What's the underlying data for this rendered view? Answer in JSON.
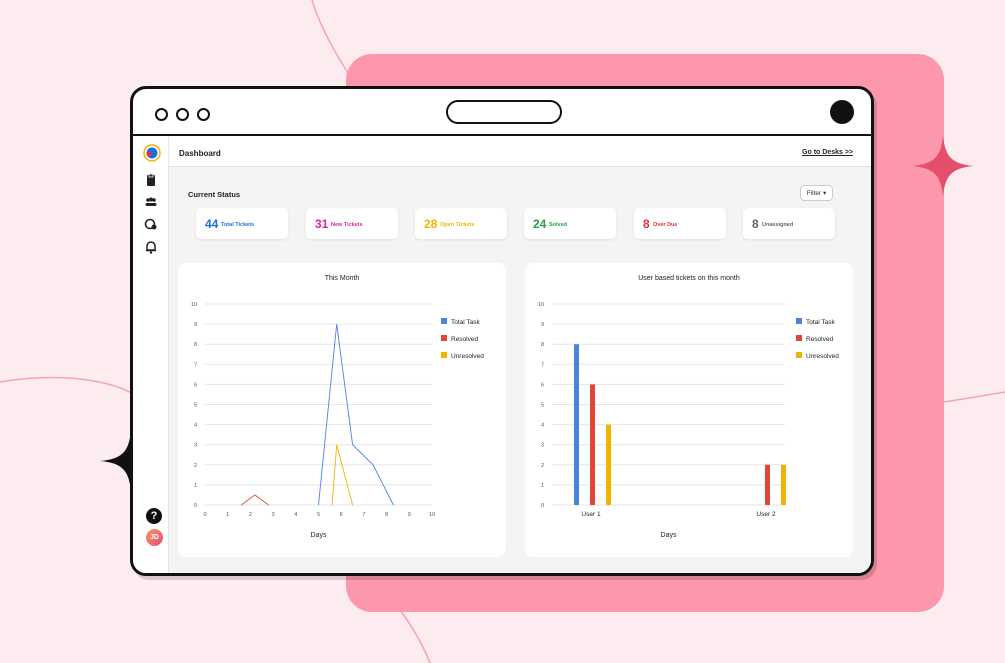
{
  "app": {
    "page_title": "Dashboard",
    "go_to_desks": "Go to Desks >>",
    "current_status_label": "Current Status",
    "filter_label": "Filter",
    "avatar_initials": "JD",
    "help_label": "?"
  },
  "stats": [
    {
      "value": "44",
      "label": "Total Tickets",
      "color": "#1a6fe0"
    },
    {
      "value": "31",
      "label": "New Tickets",
      "color": "#e0259b"
    },
    {
      "value": "28",
      "label": "Open Tickets",
      "color": "#f2b300"
    },
    {
      "value": "24",
      "label": "Solved",
      "color": "#24a046"
    },
    {
      "value": "8",
      "label": "Over Due",
      "color": "#e0303a"
    },
    {
      "value": "8",
      "label": "Unassigned",
      "color": "#666666"
    }
  ],
  "chart_data": [
    {
      "type": "line",
      "title": "This Month",
      "xlabel": "Days",
      "ylabel": "",
      "xlim": [
        0,
        10
      ],
      "ylim": [
        0,
        10
      ],
      "x_ticks": [
        "0",
        "1",
        "2",
        "3",
        "4",
        "5",
        "6",
        "7",
        "8",
        "9",
        "10"
      ],
      "y_ticks": [
        "0",
        "1",
        "2",
        "3",
        "4",
        "5",
        "6",
        "7",
        "8",
        "9",
        "10"
      ],
      "legend_position": "right",
      "series": [
        {
          "name": "Total Task",
          "color": "#4a84e0",
          "points": [
            [
              5,
              0
            ],
            [
              5.8,
              9
            ],
            [
              6.5,
              3
            ],
            [
              7.4,
              2
            ],
            [
              8.3,
              0
            ]
          ]
        },
        {
          "name": "Resolved",
          "color": "#e0473a",
          "points": [
            [
              1.6,
              0
            ],
            [
              2.2,
              0.5
            ],
            [
              2.8,
              0
            ]
          ]
        },
        {
          "name": "Unresolved",
          "color": "#f2b300",
          "points": [
            [
              5.6,
              0
            ],
            [
              5.8,
              3
            ],
            [
              6.5,
              0
            ]
          ]
        }
      ]
    },
    {
      "type": "bar",
      "title": "User based tickets on this month",
      "xlabel": "Days",
      "ylabel": "",
      "ylim": [
        0,
        10
      ],
      "y_ticks": [
        "0",
        "1",
        "2",
        "3",
        "4",
        "5",
        "6",
        "7",
        "8",
        "9",
        "10"
      ],
      "categories": [
        "User 1",
        "User 2"
      ],
      "legend_position": "right",
      "series": [
        {
          "name": "Total Task",
          "color": "#4a84e0",
          "values": [
            8,
            0
          ]
        },
        {
          "name": "Resolved",
          "color": "#e0473a",
          "values": [
            6,
            2
          ]
        },
        {
          "name": "Unresolved",
          "color": "#f2b300",
          "values": [
            4,
            2
          ]
        }
      ]
    }
  ]
}
